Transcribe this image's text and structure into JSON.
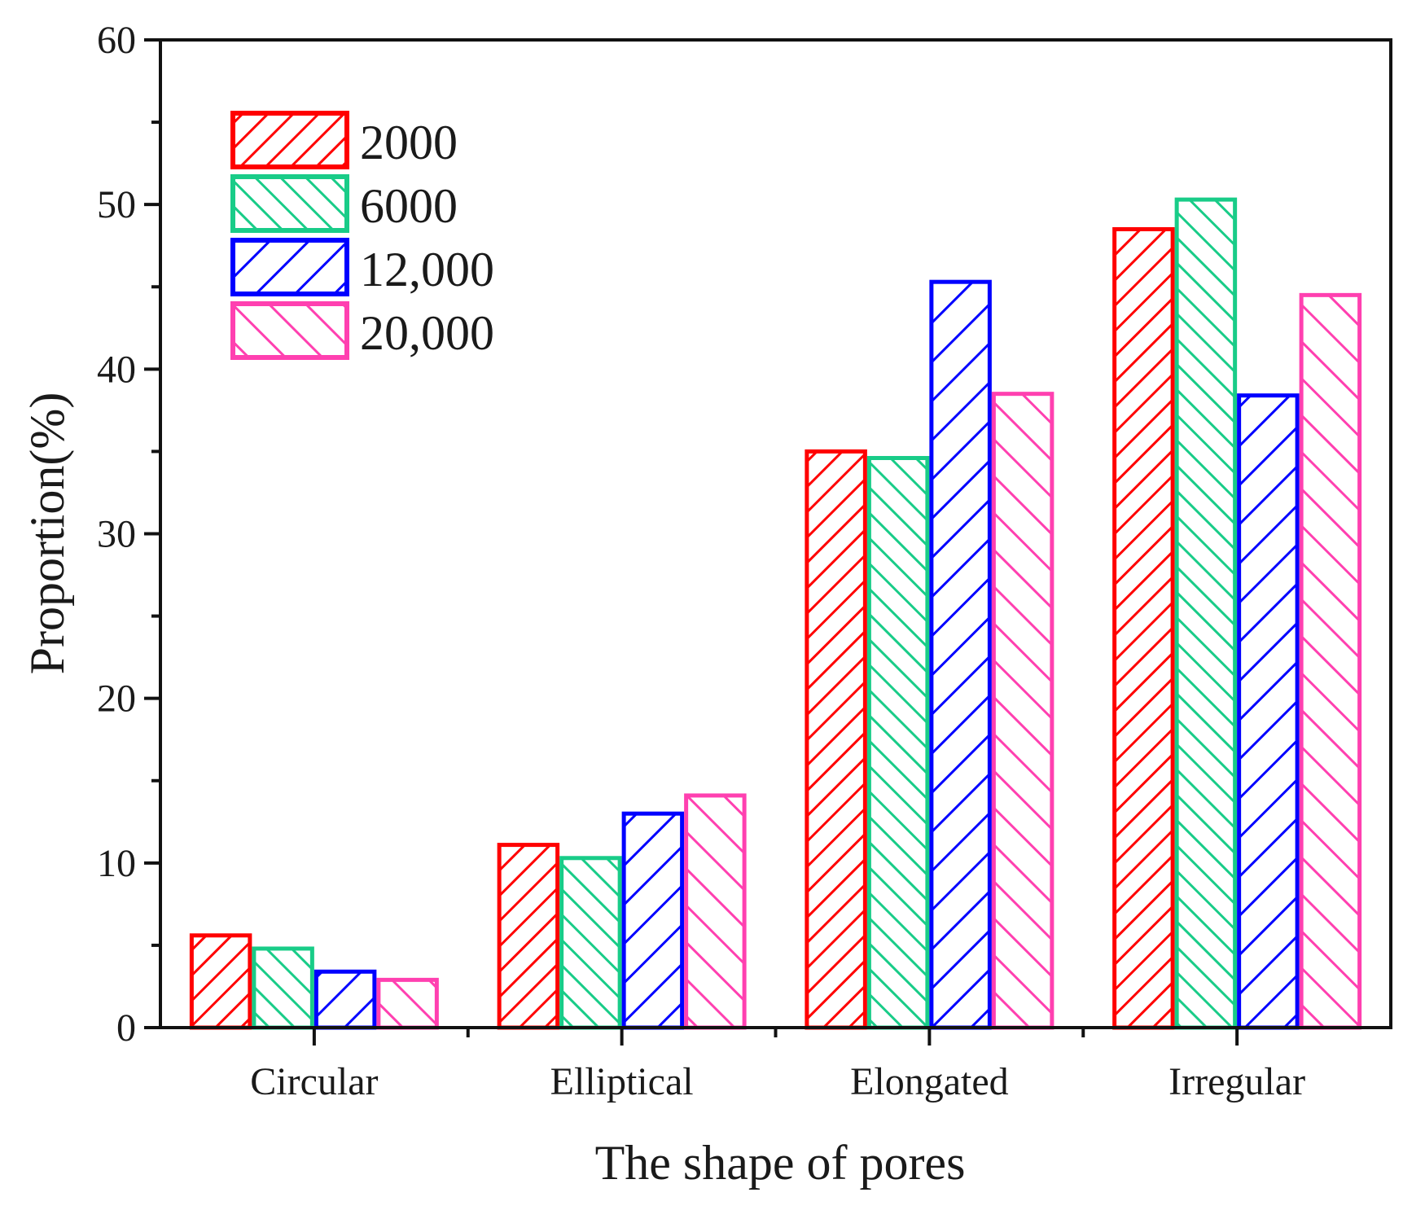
{
  "chart_data": {
    "type": "bar",
    "title": "",
    "xlabel": "The shape of pores",
    "ylabel": "Proportion(%)",
    "ylim": [
      0,
      60
    ],
    "yticks": [
      "0",
      "10",
      "20",
      "30",
      "40",
      "50",
      "60"
    ],
    "grid": false,
    "legend_position": "top-left",
    "categories": [
      "Circular",
      "Elliptical",
      "Elongated",
      "Irregular"
    ],
    "series": [
      {
        "name": "2000",
        "color": "#ff0000",
        "hatch": "forward-dense",
        "values": [
          5.6,
          11.1,
          35.0,
          48.5
        ]
      },
      {
        "name": "6000",
        "color": "#19cc88",
        "hatch": "backward-dense",
        "values": [
          4.8,
          10.3,
          34.6,
          50.3
        ]
      },
      {
        "name": "12,000",
        "color": "#0000ff",
        "hatch": "forward-sparse",
        "values": [
          3.4,
          13.0,
          45.3,
          38.4
        ]
      },
      {
        "name": "20,000",
        "color": "#ff40b0",
        "hatch": "backward-sparse",
        "values": [
          2.9,
          14.1,
          38.5,
          44.5
        ]
      }
    ]
  }
}
